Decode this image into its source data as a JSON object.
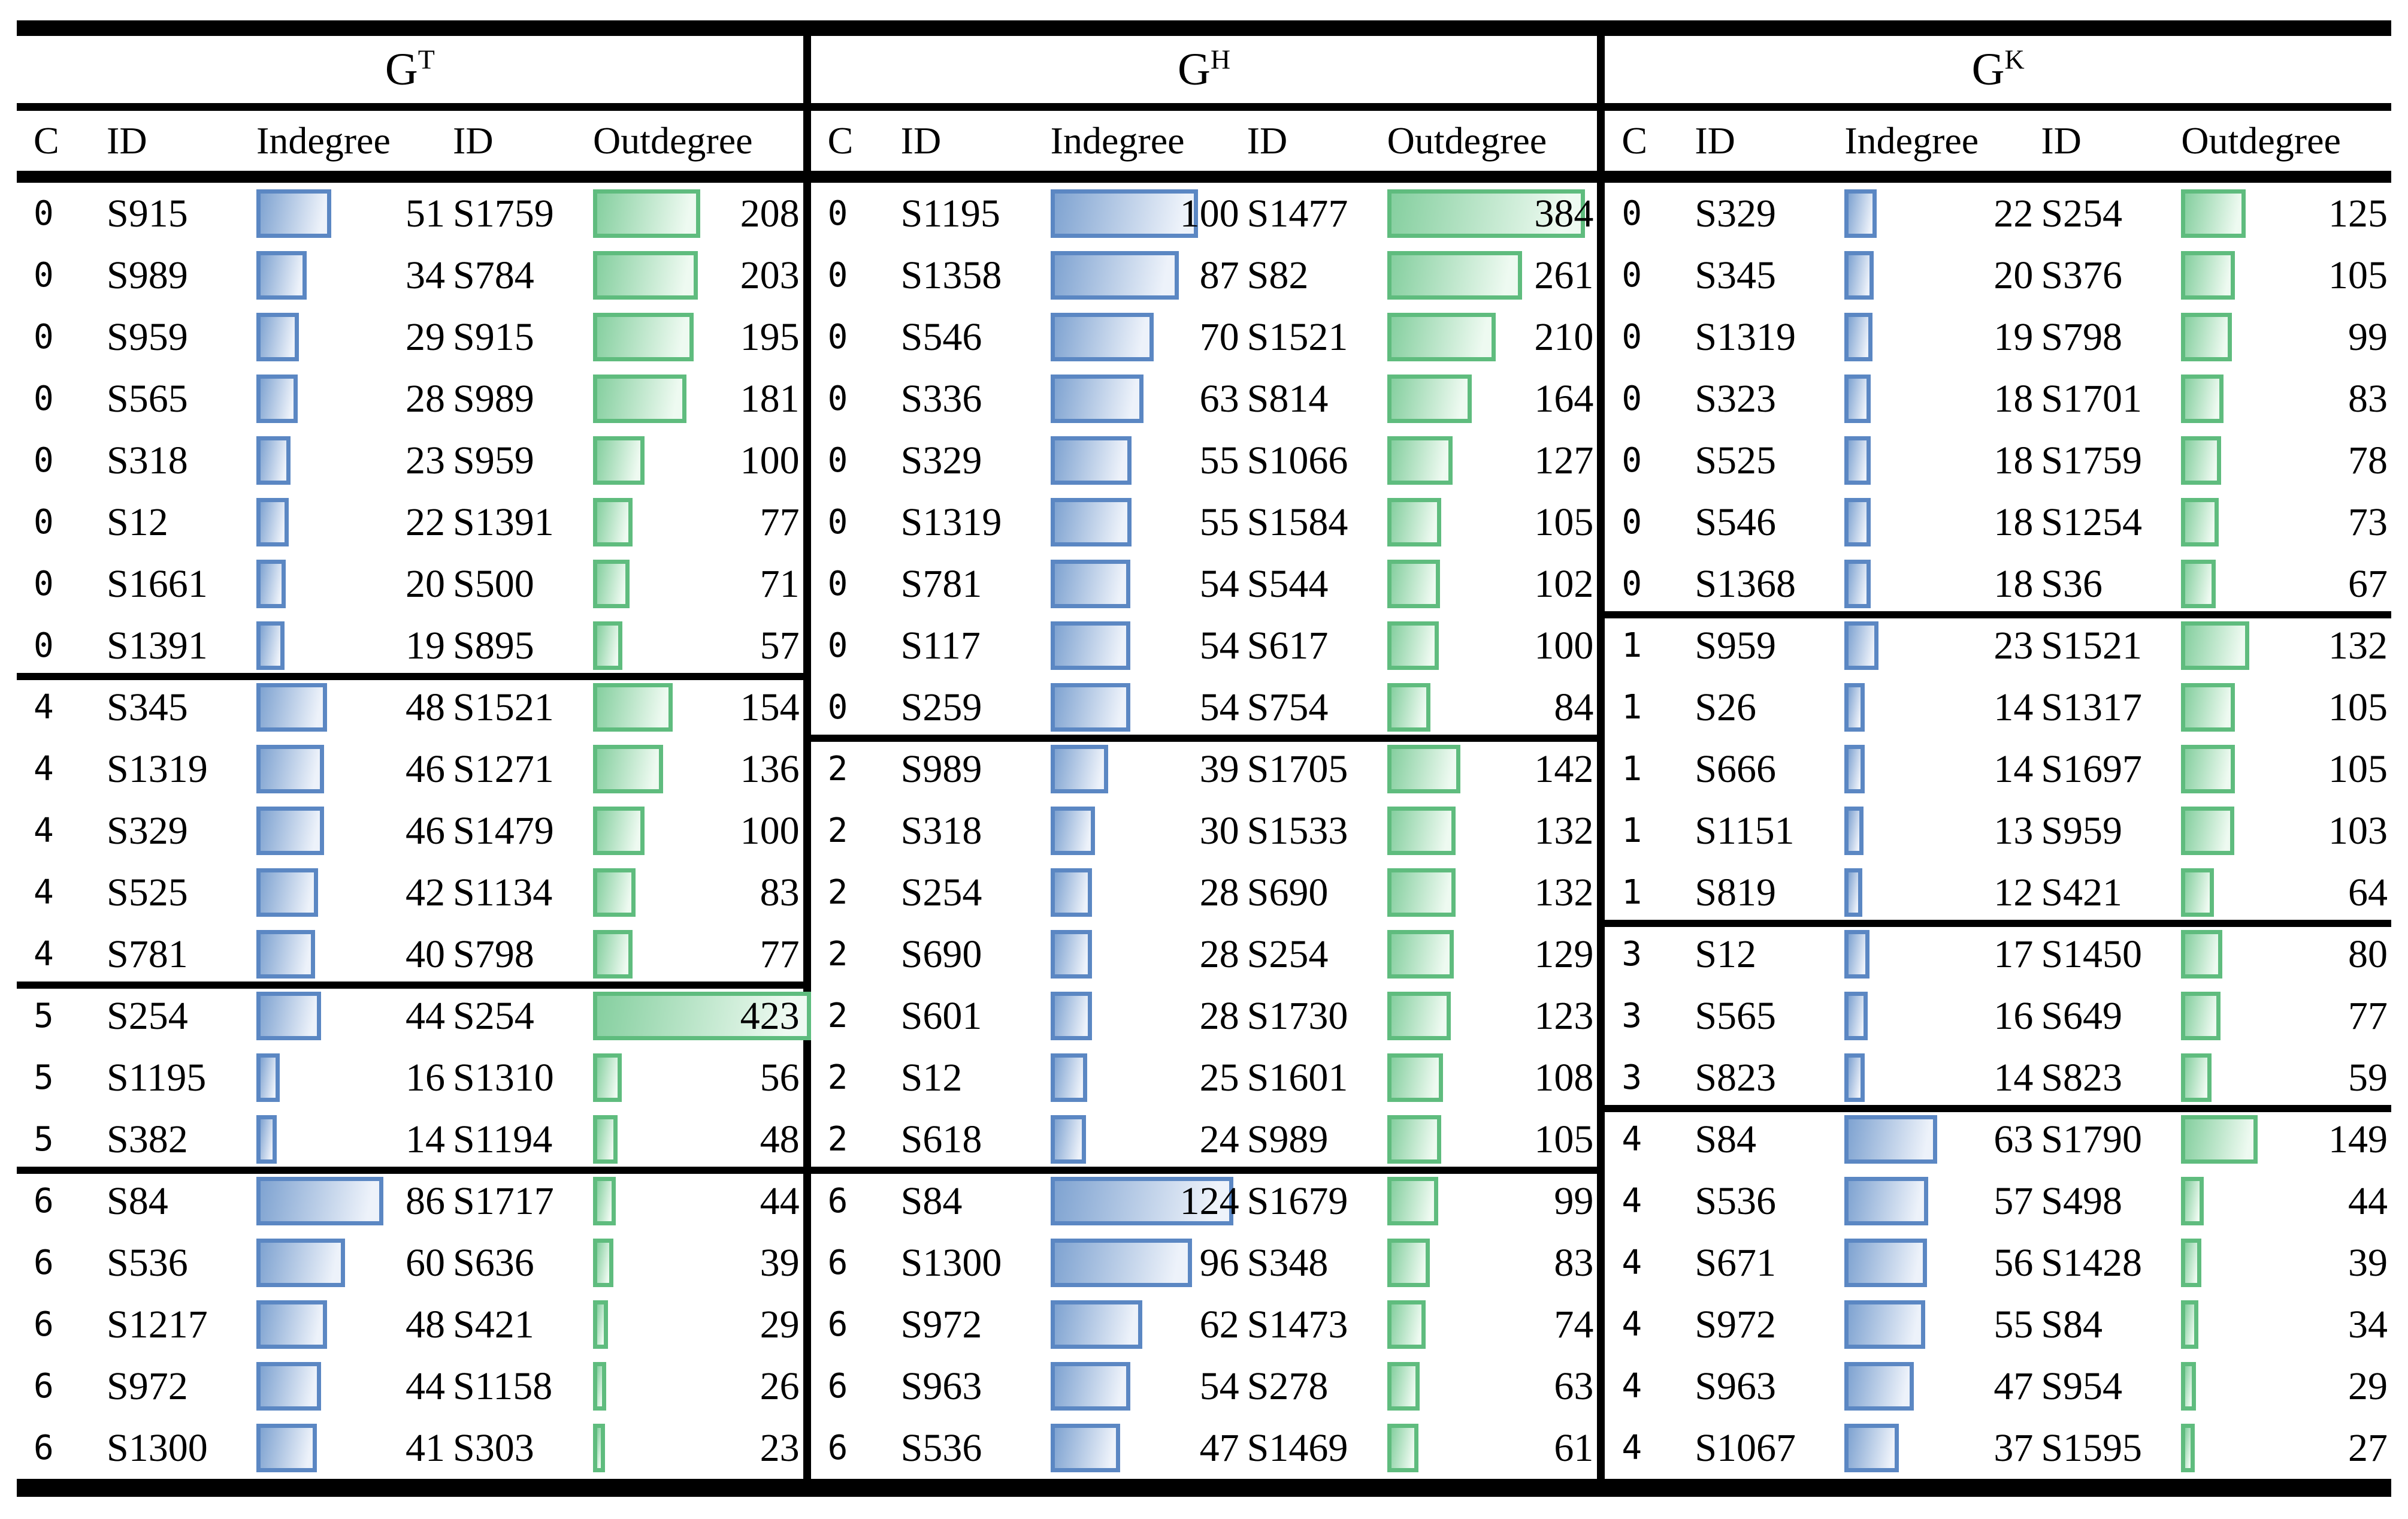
{
  "colors": {
    "indegree_border": "#5b87c3",
    "indegree_fill_start": "#7fa3d1",
    "indegree_fill_end": "#edf2fa",
    "outdegree_border": "#5fbc7e",
    "outdegree_fill_start": "#85cf9f",
    "outdegree_fill_end": "#eefaf1"
  },
  "table": {
    "groups": [
      {
        "title_g": "G",
        "sup": "T",
        "header": {
          "c": "C",
          "id1": "ID",
          "indegree": "Indegree",
          "id2": "ID",
          "outdegree": "Outdegree"
        },
        "sections": [
          {
            "rows": [
              [
                "0",
                "S915",
                51,
                "S1759",
                208
              ],
              [
                "0",
                "S989",
                34,
                "S784",
                203
              ],
              [
                "0",
                "S959",
                29,
                "S915",
                195
              ],
              [
                "0",
                "S565",
                28,
                "S989",
                181
              ],
              [
                "0",
                "S318",
                23,
                "S959",
                100
              ],
              [
                "0",
                "S12",
                22,
                "S1391",
                77
              ],
              [
                "0",
                "S1661",
                20,
                "S500",
                71
              ],
              [
                "0",
                "S1391",
                19,
                "S895",
                57
              ]
            ]
          },
          {
            "rows": [
              [
                "4",
                "S345",
                48,
                "S1521",
                154
              ],
              [
                "4",
                "S1319",
                46,
                "S1271",
                136
              ],
              [
                "4",
                "S329",
                46,
                "S1479",
                100
              ],
              [
                "4",
                "S525",
                42,
                "S1134",
                83
              ],
              [
                "4",
                "S781",
                40,
                "S798",
                77
              ]
            ]
          },
          {
            "rows": [
              [
                "5",
                "S254",
                44,
                "S254",
                423
              ],
              [
                "5",
                "S1195",
                16,
                "S1310",
                56
              ],
              [
                "5",
                "S382",
                14,
                "S1194",
                48
              ]
            ]
          },
          {
            "rows": [
              [
                "6",
                "S84",
                86,
                "S1717",
                44
              ],
              [
                "6",
                "S536",
                60,
                "S636",
                39
              ],
              [
                "6",
                "S1217",
                48,
                "S421",
                29
              ],
              [
                "6",
                "S972",
                44,
                "S1158",
                26
              ],
              [
                "6",
                "S1300",
                41,
                "S303",
                23
              ]
            ]
          }
        ]
      },
      {
        "title_g": "G",
        "sup": "H",
        "header": {
          "c": "C",
          "id1": "ID",
          "indegree": "Indegree",
          "id2": "ID",
          "outdegree": "Outdegree"
        },
        "sections": [
          {
            "rows": [
              [
                "0",
                "S1195",
                100,
                "S1477",
                384
              ],
              [
                "0",
                "S1358",
                87,
                "S82",
                261
              ],
              [
                "0",
                "S546",
                70,
                "S1521",
                210
              ],
              [
                "0",
                "S336",
                63,
                "S814",
                164
              ],
              [
                "0",
                "S329",
                55,
                "S1066",
                127
              ],
              [
                "0",
                "S1319",
                55,
                "S1584",
                105
              ],
              [
                "0",
                "S781",
                54,
                "S544",
                102
              ],
              [
                "0",
                "S117",
                54,
                "S617",
                100
              ],
              [
                "0",
                "S259",
                54,
                "S754",
                84
              ]
            ]
          },
          {
            "rows": [
              [
                "2",
                "S989",
                39,
                "S1705",
                142
              ],
              [
                "2",
                "S318",
                30,
                "S1533",
                132
              ],
              [
                "2",
                "S254",
                28,
                "S690",
                132
              ],
              [
                "2",
                "S690",
                28,
                "S254",
                129
              ],
              [
                "2",
                "S601",
                28,
                "S1730",
                123
              ],
              [
                "2",
                "S12",
                25,
                "S1601",
                108
              ],
              [
                "2",
                "S618",
                24,
                "S989",
                105
              ]
            ]
          },
          {
            "rows": [
              [
                "6",
                "S84",
                124,
                "S1679",
                99
              ],
              [
                "6",
                "S1300",
                96,
                "S348",
                83
              ],
              [
                "6",
                "S972",
                62,
                "S1473",
                74
              ],
              [
                "6",
                "S963",
                54,
                "S278",
                63
              ],
              [
                "6",
                "S536",
                47,
                "S1469",
                61
              ]
            ]
          }
        ]
      },
      {
        "title_g": "G",
        "sup": "K",
        "header": {
          "c": "C",
          "id1": "ID",
          "indegree": "Indegree",
          "id2": "ID",
          "outdegree": "Outdegree"
        },
        "sections": [
          {
            "rows": [
              [
                "0",
                "S329",
                22,
                "S254",
                125
              ],
              [
                "0",
                "S345",
                20,
                "S376",
                105
              ],
              [
                "0",
                "S1319",
                19,
                "S798",
                99
              ],
              [
                "0",
                "S323",
                18,
                "S1701",
                83
              ],
              [
                "0",
                "S525",
                18,
                "S1759",
                78
              ],
              [
                "0",
                "S546",
                18,
                "S1254",
                73
              ],
              [
                "0",
                "S1368",
                18,
                "S36",
                67
              ]
            ]
          },
          {
            "rows": [
              [
                "1",
                "S959",
                23,
                "S1521",
                132
              ],
              [
                "1",
                "S26",
                14,
                "S1317",
                105
              ],
              [
                "1",
                "S666",
                14,
                "S1697",
                105
              ],
              [
                "1",
                "S1151",
                13,
                "S959",
                103
              ],
              [
                "1",
                "S819",
                12,
                "S421",
                64
              ]
            ]
          },
          {
            "rows": [
              [
                "3",
                "S12",
                17,
                "S1450",
                80
              ],
              [
                "3",
                "S565",
                16,
                "S649",
                77
              ],
              [
                "3",
                "S823",
                14,
                "S823",
                59
              ]
            ]
          },
          {
            "rows": [
              [
                "4",
                "S84",
                63,
                "S1790",
                149
              ],
              [
                "4",
                "S536",
                57,
                "S498",
                44
              ],
              [
                "4",
                "S671",
                56,
                "S1428",
                39
              ],
              [
                "4",
                "S972",
                55,
                "S84",
                34
              ],
              [
                "4",
                "S963",
                47,
                "S954",
                29
              ],
              [
                "4",
                "S1067",
                37,
                "S1595",
                27
              ]
            ]
          }
        ]
      }
    ]
  }
}
